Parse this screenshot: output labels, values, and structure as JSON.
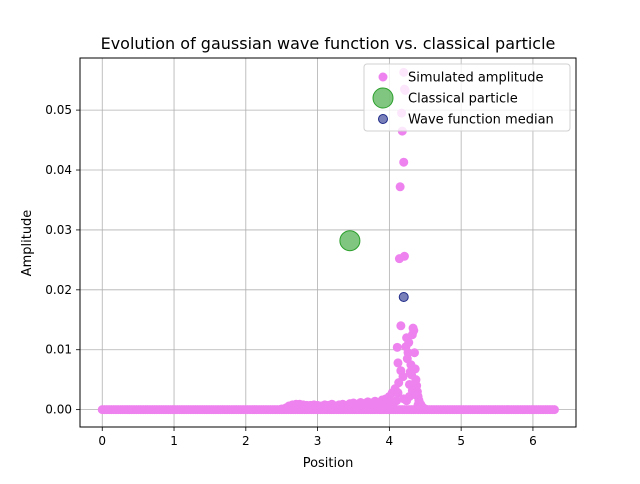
{
  "chart_data": {
    "type": "scatter",
    "title": "Evolution of gaussian wave function vs. classical particle",
    "xlabel": "Position",
    "ylabel": "Amplitude",
    "xlim": [
      -0.31,
      6.6
    ],
    "ylim": [
      -0.0029,
      0.0587
    ],
    "xticks": [
      0,
      1,
      2,
      3,
      4,
      5,
      6
    ],
    "yticks": [
      0.0,
      0.01,
      0.02,
      0.03,
      0.04,
      0.05
    ],
    "xtick_labels": [
      "0",
      "1",
      "2",
      "3",
      "4",
      "5",
      "6"
    ],
    "ytick_labels": [
      "0.00",
      "0.01",
      "0.02",
      "0.03",
      "0.04",
      "0.05"
    ],
    "grid": true,
    "legend_position": "top-right",
    "series": [
      {
        "name": "Simulated amplitude",
        "color": "#ee82ee",
        "marker": "circle",
        "points": [
          [
            2.5,
            0.0001
          ],
          [
            2.56,
            0.0003
          ],
          [
            2.6,
            0.0006
          ],
          [
            2.65,
            0.0008
          ],
          [
            2.7,
            0.0009
          ],
          [
            2.75,
            0.0009
          ],
          [
            2.8,
            0.0008
          ],
          [
            2.85,
            0.0007
          ],
          [
            2.9,
            0.0007
          ],
          [
            2.95,
            0.0008
          ],
          [
            3.0,
            0.0007
          ],
          [
            3.05,
            0.0006
          ],
          [
            3.1,
            0.0008
          ],
          [
            3.15,
            0.0007
          ],
          [
            3.2,
            0.0009
          ],
          [
            3.25,
            0.0006
          ],
          [
            3.3,
            0.0008
          ],
          [
            3.35,
            0.0009
          ],
          [
            3.4,
            0.0007
          ],
          [
            3.45,
            0.001
          ],
          [
            3.5,
            0.0011
          ],
          [
            3.55,
            0.0009
          ],
          [
            3.6,
            0.0012
          ],
          [
            3.65,
            0.001
          ],
          [
            3.7,
            0.0013
          ],
          [
            3.72,
            0.0004
          ],
          [
            3.75,
            0.0011
          ],
          [
            3.78,
            0.0003
          ],
          [
            3.8,
            0.0014
          ],
          [
            3.83,
            0.0005
          ],
          [
            3.85,
            0.0012
          ],
          [
            3.88,
            0.0002
          ],
          [
            3.9,
            0.0016
          ],
          [
            3.93,
            0.0006
          ],
          [
            3.95,
            0.0018
          ],
          [
            3.97,
            0.0003
          ],
          [
            4.0,
            0.0022
          ],
          [
            4.02,
            0.0008
          ],
          [
            4.04,
            0.0028
          ],
          [
            4.06,
            0.0012
          ],
          [
            4.08,
            0.0035
          ],
          [
            4.1,
            0.0015
          ],
          [
            4.11,
            0.0104
          ],
          [
            4.12,
            0.0078
          ],
          [
            4.13,
            0.0045
          ],
          [
            4.14,
            0.0252
          ],
          [
            4.15,
            0.0372
          ],
          [
            4.16,
            0.014
          ],
          [
            4.17,
            0.0495
          ],
          [
            4.18,
            0.0465
          ],
          [
            4.19,
            0.0055
          ],
          [
            4.2,
            0.0413
          ],
          [
            4.21,
            0.0256
          ],
          [
            4.22,
            0.0533
          ],
          [
            4.23,
            0.0105
          ],
          [
            4.24,
            0.012
          ],
          [
            4.25,
            0.0085
          ],
          [
            4.26,
            0.0095
          ],
          [
            4.27,
            0.0112
          ],
          [
            4.28,
            0.0042
          ],
          [
            4.29,
            0.0063
          ],
          [
            4.3,
            0.0075
          ],
          [
            4.31,
            0.0058
          ],
          [
            4.32,
            0.0125
          ],
          [
            4.33,
            0.0136
          ],
          [
            4.34,
            0.0132
          ],
          [
            4.35,
            0.0095
          ],
          [
            4.36,
            0.0068
          ],
          [
            4.37,
            0.005
          ],
          [
            4.38,
            0.004
          ],
          [
            4.39,
            0.003
          ],
          [
            4.4,
            0.0022
          ],
          [
            4.41,
            0.0016
          ],
          [
            4.42,
            0.0012
          ],
          [
            4.44,
            0.0008
          ],
          [
            4.46,
            0.0004
          ],
          [
            4.48,
            0.0002
          ],
          [
            4.5,
            0.0001
          ],
          [
            4.12,
            0.0028
          ],
          [
            4.16,
            0.0065
          ],
          [
            4.2,
            0.0018
          ],
          [
            4.24,
            0.0015
          ],
          [
            4.28,
            0.0022
          ],
          [
            4.32,
            0.0032
          ],
          [
            4.36,
            0.0025
          ],
          [
            4.4,
            0.0008
          ],
          [
            4.2,
            0.0563
          ],
          [
            4.21,
            0.0535
          ]
        ]
      },
      {
        "name": "Classical particle",
        "color": "#2ca02c",
        "marker": "large circle",
        "points": [
          [
            3.45,
            0.0282
          ]
        ]
      },
      {
        "name": "Wave function median",
        "color": "#1f2a88",
        "marker": "circle",
        "points": [
          [
            4.2,
            0.0188
          ]
        ]
      }
    ],
    "baseline": {
      "x_from": 0.0,
      "x_to": 6.3,
      "count": 200,
      "y": 0.0
    }
  }
}
